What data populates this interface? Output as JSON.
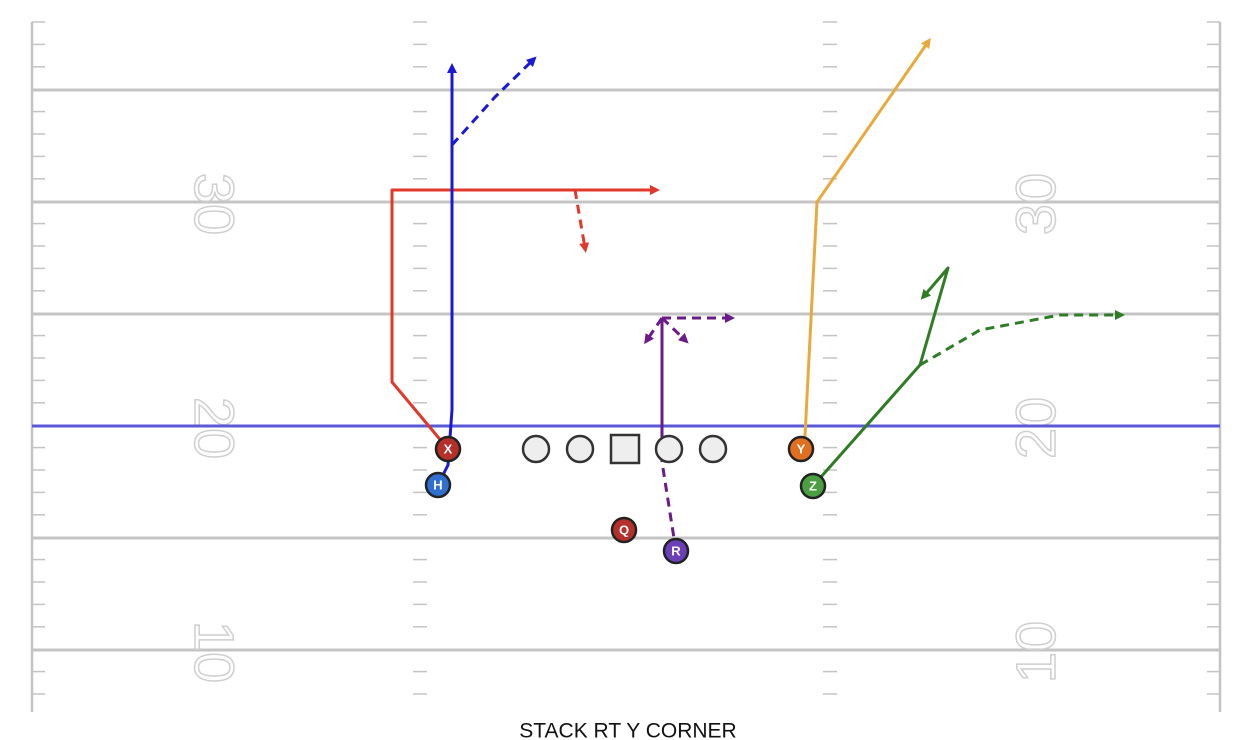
{
  "yard_numbers": {
    "left": [
      "30",
      "20",
      "10"
    ],
    "right": [
      "30",
      "20",
      "10"
    ]
  },
  "players": [
    {
      "label": "X"
    },
    {
      "label": "H"
    },
    {
      "label": "Y"
    },
    {
      "label": "Z"
    },
    {
      "label": "Q"
    },
    {
      "label": "R"
    }
  ],
  "title": "STACK RT Y CORNER"
}
